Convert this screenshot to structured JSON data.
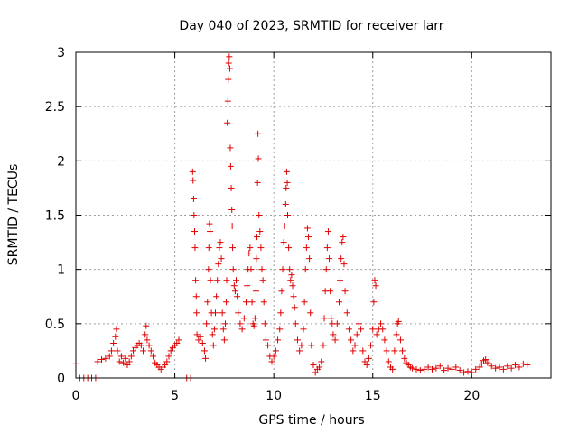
{
  "chart_data": {
    "type": "scatter",
    "title": "Day 040 of 2023, SRMTID for receiver larr",
    "xlabel": "GPS time / hours",
    "ylabel": "SRMTID / TECUs",
    "xlim": [
      0,
      24
    ],
    "ylim": [
      0,
      3
    ],
    "xticks": [
      0,
      5,
      10,
      15,
      20
    ],
    "xtick_labels": [
      "0",
      "5",
      "10",
      "15",
      "20"
    ],
    "yticks": [
      0,
      0.5,
      1,
      1.5,
      2,
      2.5,
      3
    ],
    "ytick_labels": [
      "0",
      "0.5",
      "1",
      "1.5",
      "2",
      "2.5",
      "3"
    ],
    "grid": true,
    "marker": "plus",
    "marker_color": "#e00000",
    "series": [
      {
        "name": "SRMTID",
        "points": [
          [
            0.0,
            0.13
          ],
          [
            0.2,
            0.0
          ],
          [
            0.4,
            0.0
          ],
          [
            0.6,
            0.0
          ],
          [
            0.8,
            0.0
          ],
          [
            1.0,
            0.0
          ],
          [
            1.1,
            0.15
          ],
          [
            1.3,
            0.17
          ],
          [
            1.5,
            0.18
          ],
          [
            1.7,
            0.2
          ],
          [
            1.8,
            0.25
          ],
          [
            1.9,
            0.32
          ],
          [
            2.0,
            0.38
          ],
          [
            2.05,
            0.45
          ],
          [
            2.1,
            0.25
          ],
          [
            2.2,
            0.15
          ],
          [
            2.3,
            0.2
          ],
          [
            2.4,
            0.14
          ],
          [
            2.5,
            0.18
          ],
          [
            2.6,
            0.12
          ],
          [
            2.7,
            0.15
          ],
          [
            2.8,
            0.2
          ],
          [
            2.9,
            0.25
          ],
          [
            3.0,
            0.28
          ],
          [
            3.1,
            0.3
          ],
          [
            3.2,
            0.32
          ],
          [
            3.3,
            0.3
          ],
          [
            3.4,
            0.25
          ],
          [
            3.5,
            0.4
          ],
          [
            3.55,
            0.48
          ],
          [
            3.6,
            0.35
          ],
          [
            3.7,
            0.3
          ],
          [
            3.8,
            0.25
          ],
          [
            3.9,
            0.2
          ],
          [
            4.0,
            0.14
          ],
          [
            4.1,
            0.12
          ],
          [
            4.2,
            0.1
          ],
          [
            4.3,
            0.08
          ],
          [
            4.4,
            0.1
          ],
          [
            4.5,
            0.12
          ],
          [
            4.6,
            0.15
          ],
          [
            4.7,
            0.2
          ],
          [
            4.8,
            0.25
          ],
          [
            4.9,
            0.28
          ],
          [
            5.0,
            0.3
          ],
          [
            5.1,
            0.32
          ],
          [
            5.2,
            0.35
          ],
          [
            5.6,
            0.0
          ],
          [
            5.8,
            0.0
          ],
          [
            5.9,
            1.9
          ],
          [
            5.92,
            1.82
          ],
          [
            5.95,
            1.65
          ],
          [
            5.97,
            1.5
          ],
          [
            6.0,
            1.35
          ],
          [
            6.02,
            1.2
          ],
          [
            6.05,
            0.9
          ],
          [
            6.08,
            0.75
          ],
          [
            6.1,
            0.6
          ],
          [
            6.12,
            0.4
          ],
          [
            6.2,
            0.35
          ],
          [
            6.3,
            0.38
          ],
          [
            6.4,
            0.32
          ],
          [
            6.5,
            0.25
          ],
          [
            6.55,
            0.18
          ],
          [
            6.6,
            0.5
          ],
          [
            6.65,
            0.7
          ],
          [
            6.7,
            1.0
          ],
          [
            6.72,
            1.2
          ],
          [
            6.75,
            1.42
          ],
          [
            6.78,
            1.35
          ],
          [
            6.8,
            0.9
          ],
          [
            6.85,
            0.6
          ],
          [
            6.9,
            0.4
          ],
          [
            6.95,
            0.3
          ],
          [
            7.0,
            0.45
          ],
          [
            7.05,
            0.6
          ],
          [
            7.1,
            0.75
          ],
          [
            7.15,
            0.9
          ],
          [
            7.2,
            1.05
          ],
          [
            7.25,
            1.2
          ],
          [
            7.3,
            1.25
          ],
          [
            7.35,
            1.1
          ],
          [
            7.4,
            0.6
          ],
          [
            7.45,
            0.45
          ],
          [
            7.5,
            0.35
          ],
          [
            7.55,
            0.5
          ],
          [
            7.6,
            0.7
          ],
          [
            7.62,
            0.9
          ],
          [
            7.65,
            2.35
          ],
          [
            7.68,
            2.55
          ],
          [
            7.7,
            2.75
          ],
          [
            7.72,
            2.9
          ],
          [
            7.75,
            2.96
          ],
          [
            7.78,
            2.85
          ],
          [
            7.8,
            2.12
          ],
          [
            7.82,
            1.95
          ],
          [
            7.85,
            1.75
          ],
          [
            7.88,
            1.55
          ],
          [
            7.9,
            1.4
          ],
          [
            7.92,
            1.2
          ],
          [
            7.95,
            1.0
          ],
          [
            8.0,
            0.85
          ],
          [
            8.05,
            0.8
          ],
          [
            8.1,
            0.9
          ],
          [
            8.15,
            0.75
          ],
          [
            8.2,
            0.6
          ],
          [
            8.3,
            0.5
          ],
          [
            8.4,
            0.45
          ],
          [
            8.5,
            0.55
          ],
          [
            8.6,
            0.7
          ],
          [
            8.65,
            0.85
          ],
          [
            8.7,
            1.0
          ],
          [
            8.75,
            1.15
          ],
          [
            8.8,
            1.2
          ],
          [
            8.85,
            1.0
          ],
          [
            8.9,
            0.7
          ],
          [
            8.95,
            0.5
          ],
          [
            9.0,
            0.48
          ],
          [
            9.05,
            0.55
          ],
          [
            9.1,
            0.8
          ],
          [
            9.12,
            1.1
          ],
          [
            9.15,
            1.3
          ],
          [
            9.18,
            1.8
          ],
          [
            9.2,
            2.25
          ],
          [
            9.22,
            2.02
          ],
          [
            9.25,
            1.5
          ],
          [
            9.3,
            1.35
          ],
          [
            9.35,
            1.2
          ],
          [
            9.4,
            1.0
          ],
          [
            9.45,
            0.9
          ],
          [
            9.5,
            0.7
          ],
          [
            9.55,
            0.5
          ],
          [
            9.6,
            0.35
          ],
          [
            9.7,
            0.3
          ],
          [
            9.8,
            0.2
          ],
          [
            9.9,
            0.15
          ],
          [
            10.0,
            0.2
          ],
          [
            10.1,
            0.25
          ],
          [
            10.2,
            0.35
          ],
          [
            10.3,
            0.45
          ],
          [
            10.35,
            0.6
          ],
          [
            10.4,
            0.8
          ],
          [
            10.45,
            1.0
          ],
          [
            10.5,
            1.25
          ],
          [
            10.55,
            1.4
          ],
          [
            10.6,
            1.6
          ],
          [
            10.62,
            1.75
          ],
          [
            10.65,
            1.9
          ],
          [
            10.68,
            1.8
          ],
          [
            10.7,
            1.5
          ],
          [
            10.75,
            1.2
          ],
          [
            10.8,
            1.0
          ],
          [
            10.85,
            0.9
          ],
          [
            10.9,
            0.95
          ],
          [
            10.95,
            0.85
          ],
          [
            11.0,
            0.75
          ],
          [
            11.05,
            0.65
          ],
          [
            11.1,
            0.5
          ],
          [
            11.2,
            0.35
          ],
          [
            11.3,
            0.25
          ],
          [
            11.4,
            0.3
          ],
          [
            11.5,
            0.45
          ],
          [
            11.55,
            0.7
          ],
          [
            11.6,
            1.0
          ],
          [
            11.65,
            1.2
          ],
          [
            11.7,
            1.38
          ],
          [
            11.75,
            1.3
          ],
          [
            11.8,
            1.1
          ],
          [
            11.85,
            0.6
          ],
          [
            11.9,
            0.3
          ],
          [
            12.0,
            0.12
          ],
          [
            12.1,
            0.05
          ],
          [
            12.2,
            0.08
          ],
          [
            12.3,
            0.1
          ],
          [
            12.4,
            0.15
          ],
          [
            12.5,
            0.3
          ],
          [
            12.55,
            0.55
          ],
          [
            12.6,
            0.8
          ],
          [
            12.65,
            1.0
          ],
          [
            12.7,
            1.2
          ],
          [
            12.75,
            1.35
          ],
          [
            12.8,
            1.1
          ],
          [
            12.85,
            0.8
          ],
          [
            12.9,
            0.55
          ],
          [
            12.95,
            0.5
          ],
          [
            13.0,
            0.4
          ],
          [
            13.1,
            0.35
          ],
          [
            13.2,
            0.5
          ],
          [
            13.3,
            0.7
          ],
          [
            13.35,
            0.9
          ],
          [
            13.4,
            1.1
          ],
          [
            13.45,
            1.25
          ],
          [
            13.5,
            1.3
          ],
          [
            13.55,
            1.05
          ],
          [
            13.6,
            0.8
          ],
          [
            13.7,
            0.6
          ],
          [
            13.8,
            0.45
          ],
          [
            13.9,
            0.35
          ],
          [
            14.0,
            0.25
          ],
          [
            14.1,
            0.3
          ],
          [
            14.2,
            0.4
          ],
          [
            14.3,
            0.5
          ],
          [
            14.4,
            0.45
          ],
          [
            14.5,
            0.25
          ],
          [
            14.6,
            0.15
          ],
          [
            14.7,
            0.12
          ],
          [
            14.8,
            0.18
          ],
          [
            14.9,
            0.3
          ],
          [
            15.0,
            0.45
          ],
          [
            15.05,
            0.7
          ],
          [
            15.1,
            0.9
          ],
          [
            15.15,
            0.85
          ],
          [
            15.2,
            0.4
          ],
          [
            15.3,
            0.45
          ],
          [
            15.4,
            0.5
          ],
          [
            15.5,
            0.45
          ],
          [
            15.6,
            0.35
          ],
          [
            15.7,
            0.25
          ],
          [
            15.8,
            0.15
          ],
          [
            15.9,
            0.1
          ],
          [
            16.0,
            0.08
          ],
          [
            16.1,
            0.25
          ],
          [
            16.2,
            0.4
          ],
          [
            16.25,
            0.5
          ],
          [
            16.3,
            0.52
          ],
          [
            16.4,
            0.35
          ],
          [
            16.5,
            0.25
          ],
          [
            16.6,
            0.18
          ],
          [
            16.7,
            0.14
          ],
          [
            16.8,
            0.12
          ],
          [
            16.9,
            0.1
          ],
          [
            17.0,
            0.09
          ],
          [
            17.2,
            0.08
          ],
          [
            17.4,
            0.07
          ],
          [
            17.6,
            0.08
          ],
          [
            17.8,
            0.1
          ],
          [
            18.0,
            0.08
          ],
          [
            18.2,
            0.09
          ],
          [
            18.4,
            0.11
          ],
          [
            18.6,
            0.07
          ],
          [
            18.8,
            0.09
          ],
          [
            19.0,
            0.08
          ],
          [
            19.2,
            0.1
          ],
          [
            19.4,
            0.07
          ],
          [
            19.6,
            0.05
          ],
          [
            19.8,
            0.06
          ],
          [
            20.0,
            0.05
          ],
          [
            20.2,
            0.08
          ],
          [
            20.4,
            0.1
          ],
          [
            20.5,
            0.13
          ],
          [
            20.6,
            0.16
          ],
          [
            20.7,
            0.17
          ],
          [
            20.8,
            0.14
          ],
          [
            21.0,
            0.11
          ],
          [
            21.2,
            0.09
          ],
          [
            21.4,
            0.1
          ],
          [
            21.6,
            0.08
          ],
          [
            21.8,
            0.11
          ],
          [
            22.0,
            0.09
          ],
          [
            22.2,
            0.12
          ],
          [
            22.4,
            0.1
          ],
          [
            22.6,
            0.13
          ],
          [
            22.8,
            0.12
          ]
        ]
      }
    ]
  }
}
